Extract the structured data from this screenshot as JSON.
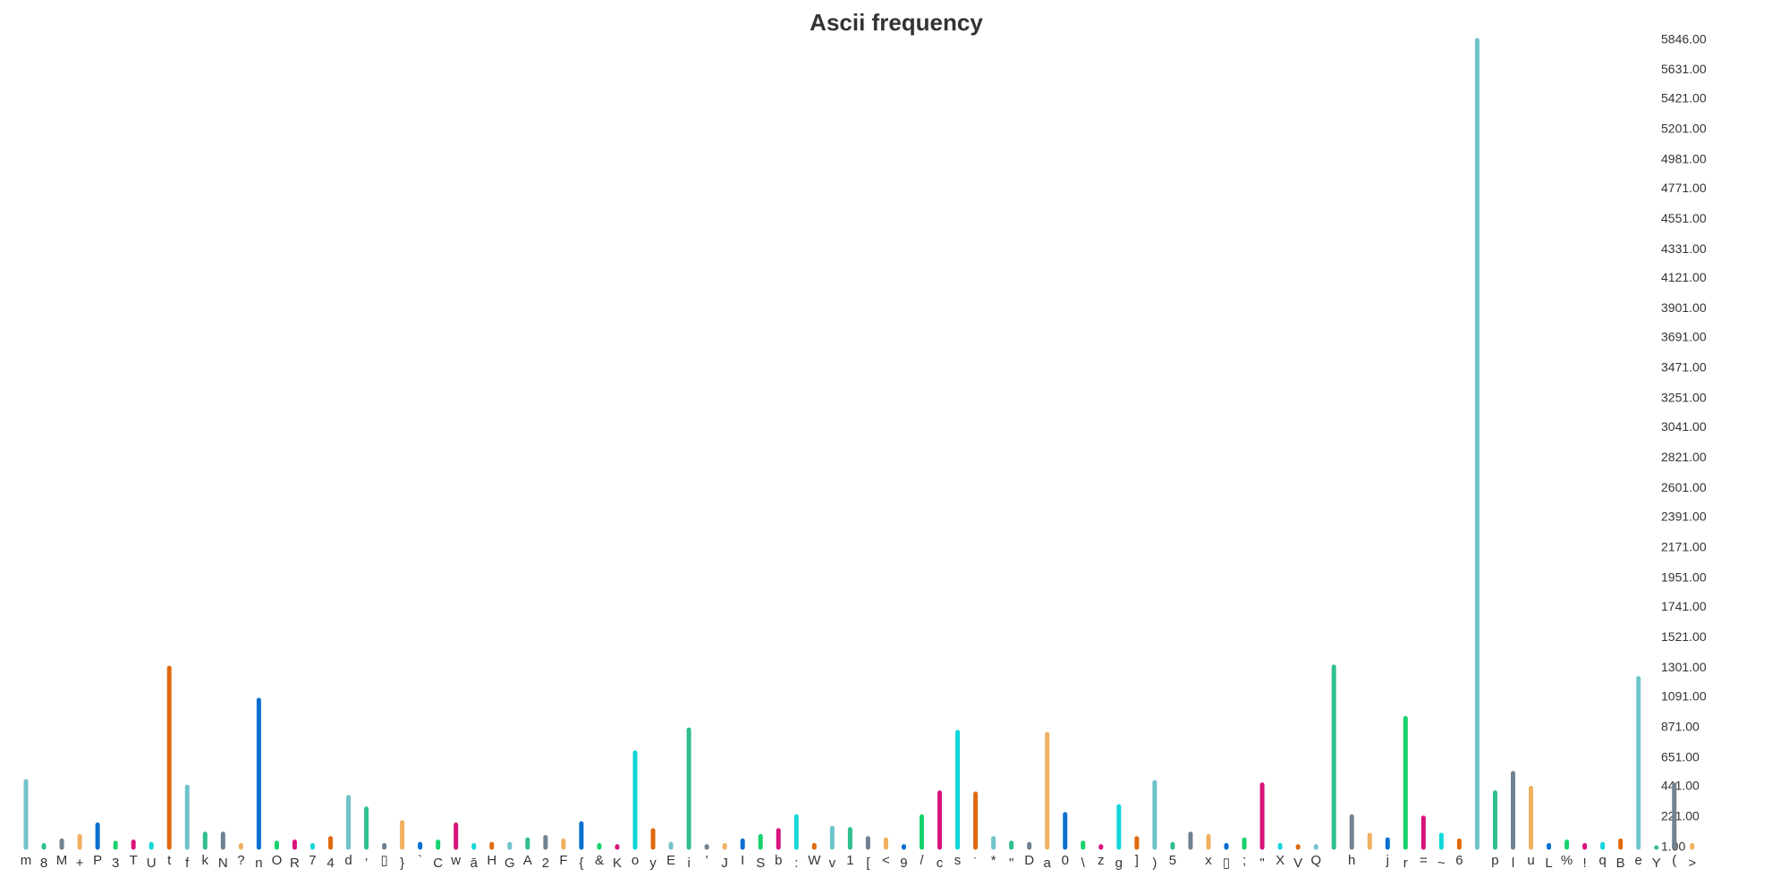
{
  "chart_data": {
    "type": "bar",
    "title": "Ascii frequency",
    "categories": [
      "m",
      "8",
      "M",
      "+",
      "P",
      "3",
      "T",
      "U",
      "t",
      "f",
      "k",
      "N",
      "?",
      "n",
      "O",
      "R",
      "7",
      "4",
      "d",
      "’",
      "▯",
      "}",
      "`",
      "C",
      "w",
      "ā",
      "H",
      "G",
      "A",
      "2",
      "F",
      "{",
      "&",
      "K",
      "o",
      "y",
      "E",
      "i",
      "'",
      "J",
      "I",
      "S",
      "b",
      ":",
      "W",
      "v",
      "1",
      "[",
      "<",
      "9",
      "/",
      "c",
      "s",
      "˙",
      "*",
      "\"",
      "D",
      "a",
      "0",
      "\\",
      "z",
      "g",
      "]",
      ")",
      "5",
      null,
      "x",
      "▯",
      ";",
      "\"",
      "X",
      "V",
      "Q",
      null,
      "h",
      null,
      "j",
      "r",
      "=",
      "~",
      "6",
      null,
      "p",
      "l",
      "u",
      "L",
      "%",
      "!",
      "q",
      "B",
      "e",
      "Y",
      "(",
      ">"
    ],
    "values": [
      480,
      17,
      50,
      83,
      166,
      34,
      42,
      25,
      1301,
      440,
      100,
      100,
      17,
      1069,
      34,
      42,
      17,
      67,
      365,
      282,
      17,
      183,
      25,
      42,
      166,
      17,
      25,
      25,
      58,
      75,
      50,
      175,
      17,
      9,
      688,
      125,
      25,
      854,
      9,
      17,
      50,
      83,
      125,
      225,
      17,
      142,
      133,
      67,
      58,
      9,
      225,
      398,
      837,
      390,
      67,
      34,
      25,
      821,
      241,
      34,
      9,
      299,
      67,
      473,
      25,
      100,
      83,
      17,
      58,
      456,
      17,
      9,
      9,
      1309,
      225,
      92,
      58,
      937,
      216,
      92,
      50,
      5846,
      398,
      539,
      431,
      17,
      42,
      17,
      25,
      50,
      1226,
      1,
      456,
      17
    ],
    "palette": [
      "#6fc3cb",
      "#2fbf8c",
      "#718191",
      "#f0b060",
      "#0a6fd0",
      "#18d26c",
      "#d8137c",
      "#12d6d8",
      "#e0690e"
    ],
    "ylim": [
      1,
      5846
    ],
    "yticks": [
      {
        "value": 1,
        "label": "1.00"
      },
      {
        "value": 221,
        "label": "221.00"
      },
      {
        "value": 441,
        "label": "441.00"
      },
      {
        "value": 651,
        "label": "651.00"
      },
      {
        "value": 871,
        "label": "871.00"
      },
      {
        "value": 1091,
        "label": "1091.00"
      },
      {
        "value": 1301,
        "label": "1301.00"
      },
      {
        "value": 1521,
        "label": "1521.00"
      },
      {
        "value": 1741,
        "label": "1741.00"
      },
      {
        "value": 1951,
        "label": "1951.00"
      },
      {
        "value": 2171,
        "label": "2171.00"
      },
      {
        "value": 2391,
        "label": "2391.00"
      },
      {
        "value": 2601,
        "label": "2601.00"
      },
      {
        "value": 2821,
        "label": "2821.00"
      },
      {
        "value": 3041,
        "label": "3041.00"
      },
      {
        "value": 3251,
        "label": "3251.00"
      },
      {
        "value": 3471,
        "label": "3471.00"
      },
      {
        "value": 3691,
        "label": "3691.00"
      },
      {
        "value": 3901,
        "label": "3901.00"
      },
      {
        "value": 4121,
        "label": "4121.00"
      },
      {
        "value": 4331,
        "label": "4331.00"
      },
      {
        "value": 4551,
        "label": "4551.00"
      },
      {
        "value": 4771,
        "label": "4771.00"
      },
      {
        "value": 4981,
        "label": "4981.00"
      },
      {
        "value": 5201,
        "label": "5201.00"
      },
      {
        "value": 5421,
        "label": "5421.00"
      },
      {
        "value": 5631,
        "label": "5631.00"
      },
      {
        "value": 5846,
        "label": "5846.00"
      }
    ],
    "grid": false
  }
}
